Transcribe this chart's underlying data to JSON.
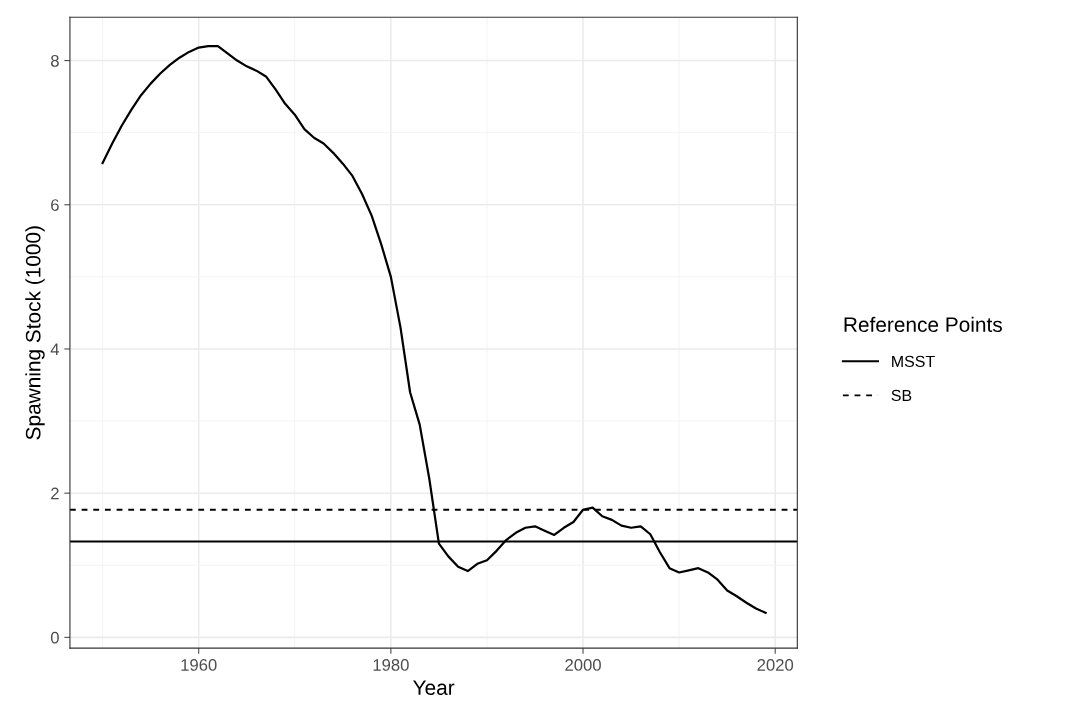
{
  "chart_data": {
    "type": "line",
    "xlabel": "Year",
    "ylabel": "Spawning Stock (1000)",
    "legend_title": "Reference Points",
    "legend": "right",
    "grid": true,
    "x": [
      1950,
      1951,
      1952,
      1953,
      1954,
      1955,
      1956,
      1957,
      1958,
      1959,
      1960,
      1961,
      1962,
      1963,
      1964,
      1965,
      1966,
      1967,
      1968,
      1969,
      1970,
      1971,
      1972,
      1973,
      1974,
      1975,
      1976,
      1977,
      1978,
      1979,
      1980,
      1981,
      1982,
      1983,
      1984,
      1985,
      1986,
      1987,
      1988,
      1989,
      1990,
      1991,
      1992,
      1993,
      1994,
      1995,
      1996,
      1997,
      1998,
      1999,
      2000,
      2001,
      2002,
      2003,
      2004,
      2005,
      2006,
      2007,
      2008,
      2009,
      2010,
      2011,
      2012,
      2013,
      2014,
      2015,
      2016,
      2017,
      2018,
      2019
    ],
    "series": [
      {
        "color": "#000000",
        "values": [
          6.58,
          6.85,
          7.1,
          7.32,
          7.52,
          7.68,
          7.82,
          7.94,
          8.04,
          8.12,
          8.18,
          8.2,
          8.2,
          8.1,
          8.0,
          7.92,
          7.86,
          7.78,
          7.6,
          7.4,
          7.25,
          7.05,
          6.93,
          6.85,
          6.72,
          6.57,
          6.4,
          6.15,
          5.85,
          5.45,
          5.0,
          4.3,
          3.4,
          2.95,
          2.2,
          1.3,
          1.12,
          0.98,
          0.92,
          1.02,
          1.07,
          1.2,
          1.35,
          1.45,
          1.52,
          1.54,
          1.48,
          1.42,
          1.52,
          1.6,
          1.77,
          1.8,
          1.68,
          1.63,
          1.55,
          1.52,
          1.54,
          1.43,
          1.18,
          0.96,
          0.9,
          0.93,
          0.96,
          0.9,
          0.8,
          0.65,
          0.57,
          0.48,
          0.4,
          0.34
        ]
      }
    ],
    "ref_lines": [
      {
        "axis": "y",
        "value": 1.33,
        "label": "MSST",
        "line_style": "solid",
        "color": "#000000"
      },
      {
        "axis": "y",
        "value": 1.77,
        "label": "SB",
        "line_style": "dashed",
        "color": "#000000"
      }
    ],
    "xlim": [
      1946.6,
      2022.3
    ],
    "ylim": [
      -0.15,
      8.6
    ],
    "xticks": [
      1960,
      1980,
      2000,
      2020
    ],
    "yticks": [
      0,
      2,
      4,
      6,
      8
    ]
  }
}
